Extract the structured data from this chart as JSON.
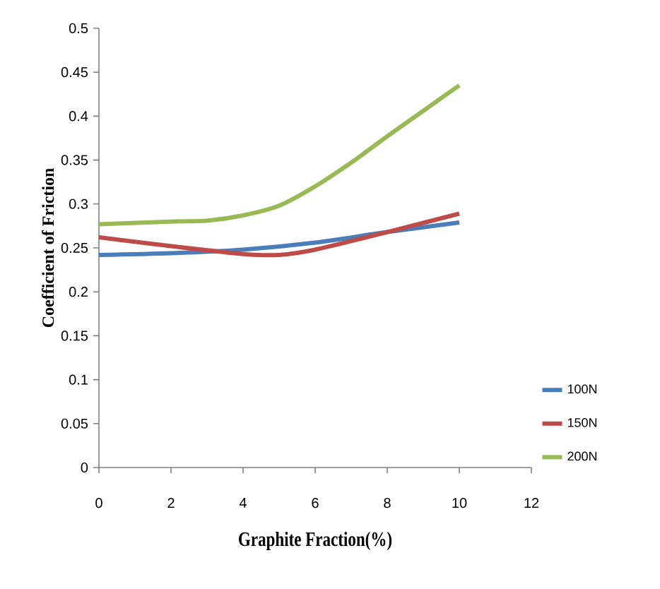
{
  "chart_data": {
    "type": "line",
    "xlabel": "Graphite Fraction(%)",
    "ylabel": "Coefficient of Friction",
    "xlim": [
      0,
      12
    ],
    "xticks": [
      0,
      2,
      4,
      6,
      8,
      10,
      12
    ],
    "ylim": [
      0,
      0.5
    ],
    "yticks": [
      0,
      0.05,
      0.1,
      0.15,
      0.2,
      0.25,
      0.3,
      0.35,
      0.4,
      0.45,
      0.5
    ],
    "legend": "right",
    "grid": false,
    "marker": "none",
    "line_style": "solid",
    "series": [
      {
        "name": "100N",
        "color": "#4a7ebb",
        "x": [
          0,
          2,
          4,
          6,
          8,
          10
        ],
        "values": [
          0.242,
          0.244,
          0.248,
          0.256,
          0.268,
          0.279
        ]
      },
      {
        "name": "150N",
        "color": "#be4b48",
        "x": [
          0,
          2,
          4,
          5,
          6,
          8,
          10
        ],
        "values": [
          0.262,
          0.252,
          0.243,
          0.242,
          0.248,
          0.268,
          0.289
        ]
      },
      {
        "name": "200N",
        "color": "#98b954",
        "x": [
          0,
          2,
          3,
          4,
          5,
          6,
          7,
          8,
          9,
          10
        ],
        "values": [
          0.277,
          0.28,
          0.281,
          0.287,
          0.298,
          0.32,
          0.347,
          0.377,
          0.406,
          0.435
        ]
      }
    ]
  }
}
